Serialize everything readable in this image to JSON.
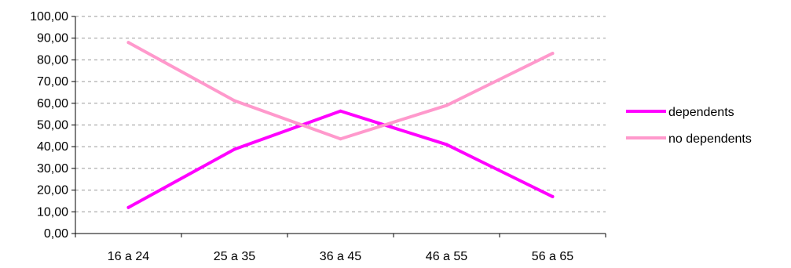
{
  "chart_data": {
    "type": "line",
    "categories": [
      "16 a 24",
      "25 a 35",
      "36 a 45",
      "46 a 55",
      "56 a 65"
    ],
    "series": [
      {
        "name": "dependents",
        "values": [
          12.0,
          38.8,
          56.4,
          41.0,
          17.0
        ],
        "color": "#ff00ff"
      },
      {
        "name": "no dependents",
        "values": [
          88.0,
          61.2,
          43.6,
          59.0,
          83.0
        ],
        "color": "#ff99cc"
      }
    ],
    "yticks": [
      "0,00",
      "10,00",
      "20,00",
      "30,00",
      "40,00",
      "50,00",
      "60,00",
      "70,00",
      "80,00",
      "90,00",
      "100,00"
    ],
    "ylim": [
      0,
      100
    ],
    "grid": true,
    "legend_position": "right"
  }
}
